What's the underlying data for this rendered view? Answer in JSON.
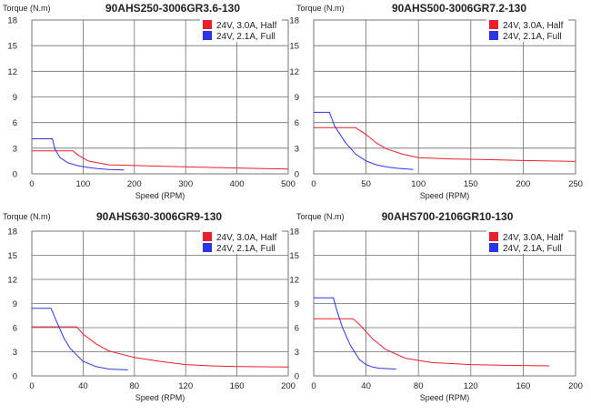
{
  "chart_data": [
    {
      "type": "line",
      "title": "90AHS250-3006GR3.6-130",
      "ylabel": "Torque (N.m)",
      "xlabel": "Speed (RPM)",
      "xlim": [
        0,
        500
      ],
      "ylim": [
        0,
        18
      ],
      "xticks": [
        0,
        100,
        200,
        300,
        400,
        500
      ],
      "yticks": [
        0,
        3,
        6,
        9,
        12,
        15,
        18
      ],
      "grid": true,
      "legend": "top-right",
      "series": [
        {
          "name": "24V, 3.0A, Half",
          "color": "#e8202a",
          "x": [
            0,
            80,
            90,
            110,
            150,
            250,
            350,
            500
          ],
          "y": [
            2.7,
            2.7,
            2.2,
            1.5,
            1.05,
            0.9,
            0.75,
            0.55
          ]
        },
        {
          "name": "24V, 2.1A, Full",
          "color": "#2a35e8",
          "x": [
            0,
            40,
            45,
            55,
            70,
            90,
            110,
            130,
            150,
            180
          ],
          "y": [
            4.1,
            4.1,
            2.9,
            1.9,
            1.3,
            0.95,
            0.75,
            0.6,
            0.5,
            0.45
          ]
        }
      ]
    },
    {
      "type": "line",
      "title": "90AHS500-3006GR7.2-130",
      "ylabel": "Torque (N.m)",
      "xlabel": "Speed (RPM)",
      "xlim": [
        0,
        250
      ],
      "ylim": [
        0,
        18
      ],
      "xticks": [
        0,
        50,
        100,
        150,
        200,
        250
      ],
      "yticks": [
        0,
        3,
        6,
        9,
        12,
        15,
        18
      ],
      "grid": true,
      "legend": "top-right",
      "series": [
        {
          "name": "24V, 3.0A, Half",
          "color": "#e8202a",
          "x": [
            0,
            40,
            50,
            60,
            70,
            85,
            100,
            130,
            170,
            200,
            250
          ],
          "y": [
            5.4,
            5.4,
            4.6,
            3.6,
            2.9,
            2.3,
            1.9,
            1.75,
            1.65,
            1.55,
            1.45
          ]
        },
        {
          "name": "24V, 2.1A, Full",
          "color": "#2a35e8",
          "x": [
            0,
            15,
            20,
            30,
            40,
            50,
            60,
            70,
            80,
            95
          ],
          "y": [
            7.2,
            7.2,
            5.6,
            3.7,
            2.3,
            1.5,
            1.05,
            0.8,
            0.65,
            0.5
          ]
        }
      ]
    },
    {
      "type": "line",
      "title": "90AHS630-3006GR9-130",
      "ylabel": "Torque (N.m)",
      "xlabel": "Speed (RPM)",
      "xlim": [
        0,
        200
      ],
      "ylim": [
        0,
        18
      ],
      "xticks": [
        0,
        40,
        80,
        120,
        160,
        200
      ],
      "yticks": [
        0,
        3,
        6,
        9,
        12,
        15,
        18
      ],
      "grid": true,
      "legend": "top-right",
      "series": [
        {
          "name": "24V, 3.0A, Half",
          "color": "#e8202a",
          "x": [
            0,
            35,
            40,
            50,
            60,
            80,
            100,
            120,
            140,
            160,
            200
          ],
          "y": [
            6.1,
            6.1,
            5.2,
            4.0,
            3.1,
            2.3,
            1.8,
            1.4,
            1.25,
            1.15,
            1.1
          ]
        },
        {
          "name": "24V, 2.1A, Full",
          "color": "#2a35e8",
          "x": [
            0,
            15,
            20,
            25,
            30,
            40,
            50,
            60,
            75
          ],
          "y": [
            8.4,
            8.4,
            6.5,
            4.7,
            3.4,
            1.8,
            1.15,
            0.85,
            0.75
          ]
        }
      ]
    },
    {
      "type": "line",
      "title": "90AHS700-2106GR10-130",
      "ylabel": "Torque (N.m)",
      "xlabel": "Speed (RPM)",
      "xlim": [
        0,
        200
      ],
      "ylim": [
        0,
        18
      ],
      "xticks": [
        0,
        40,
        80,
        120,
        160,
        200
      ],
      "yticks": [
        0,
        3,
        6,
        9,
        12,
        15,
        18
      ],
      "grid": true,
      "legend": "top-right",
      "series": [
        {
          "name": "24V, 3.0A, Half",
          "color": "#e8202a",
          "x": [
            0,
            30,
            35,
            45,
            55,
            70,
            90,
            120,
            150,
            180
          ],
          "y": [
            7.1,
            7.1,
            6.4,
            4.6,
            3.3,
            2.2,
            1.65,
            1.4,
            1.3,
            1.25
          ]
        },
        {
          "name": "24V, 2.1A, Full",
          "color": "#2a35e8",
          "x": [
            0,
            15,
            18,
            22,
            28,
            35,
            40,
            45,
            50,
            63
          ],
          "y": [
            9.7,
            9.7,
            8.0,
            6.0,
            3.8,
            2.0,
            1.4,
            1.1,
            0.95,
            0.85
          ]
        }
      ]
    }
  ]
}
